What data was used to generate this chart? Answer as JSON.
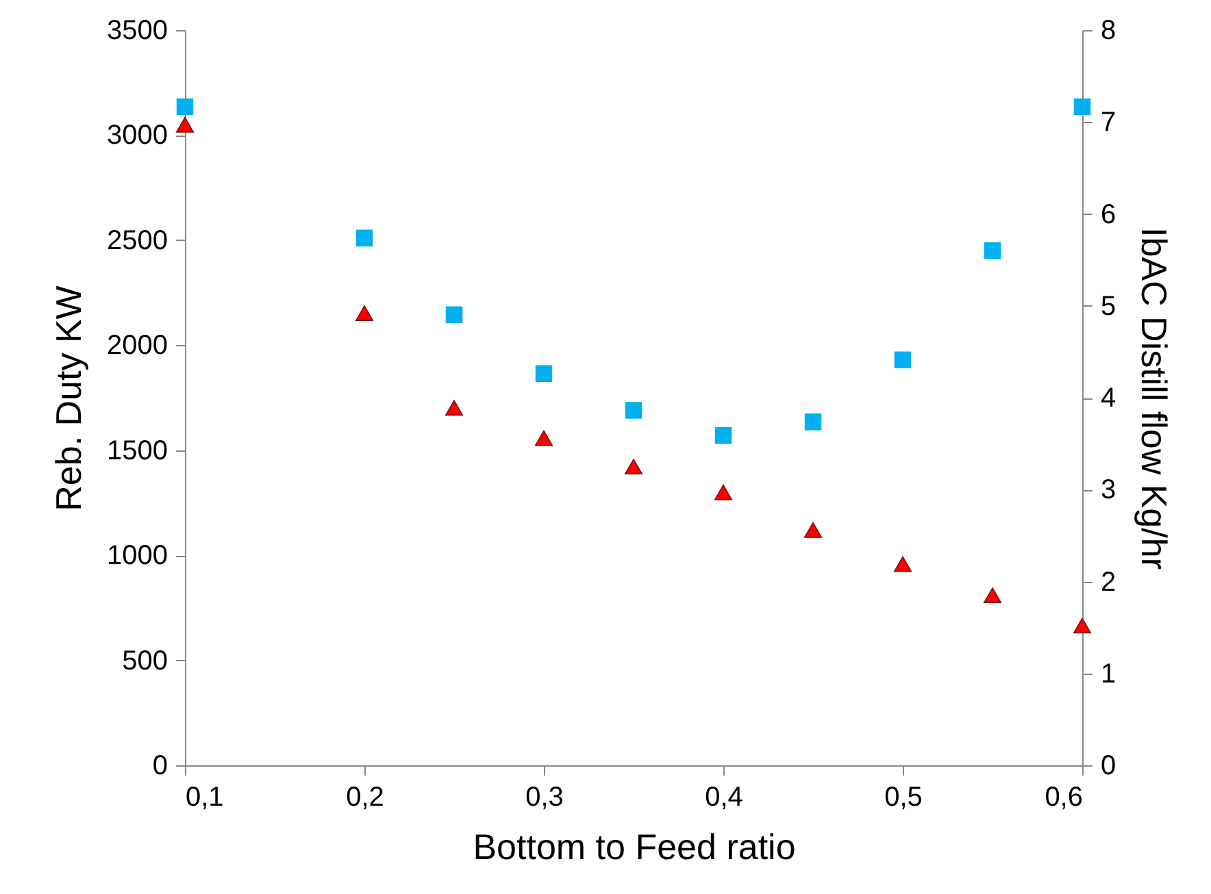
{
  "chart_data": {
    "type": "scatter",
    "xlabel": "Bottom to Feed ratio",
    "ylabel": "Reb. Duty KW",
    "y2label": "IbAC Distill flow Kg/hr",
    "x": [
      0.1,
      0.2,
      0.25,
      0.3,
      0.35,
      0.4,
      0.45,
      0.5,
      0.55,
      0.6
    ],
    "series": [
      {
        "color": "#00b0f0",
        "marker": "square",
        "values": [
          3135,
          2510,
          2145,
          1865,
          1690,
          1570,
          1635,
          1930,
          2450,
          3135
        ]
      },
      {
        "color": "#ff0000",
        "marker": "triangle",
        "axis": "y2",
        "values": [
          6.97,
          4.92,
          3.89,
          3.56,
          3.25,
          2.97,
          2.56,
          2.19,
          1.85,
          1.52
        ]
      }
    ],
    "xlim": [
      0.1,
      0.6
    ],
    "xticks": [
      {
        "value": 0.1,
        "label": "0,1"
      },
      {
        "value": 0.2,
        "label": "0,2"
      },
      {
        "value": 0.3,
        "label": "0,3"
      },
      {
        "value": 0.4,
        "label": "0,4"
      },
      {
        "value": 0.5,
        "label": "0,5"
      },
      {
        "value": 0.6,
        "label": "0,6"
      }
    ],
    "ylim": [
      0,
      3500
    ],
    "yticks": [
      0,
      500,
      1000,
      1500,
      2000,
      2500,
      3000,
      3500
    ],
    "y2lim": [
      0,
      8
    ],
    "y2ticks": [
      0,
      1,
      2,
      3,
      4,
      5,
      6,
      7,
      8
    ],
    "grid": false
  }
}
